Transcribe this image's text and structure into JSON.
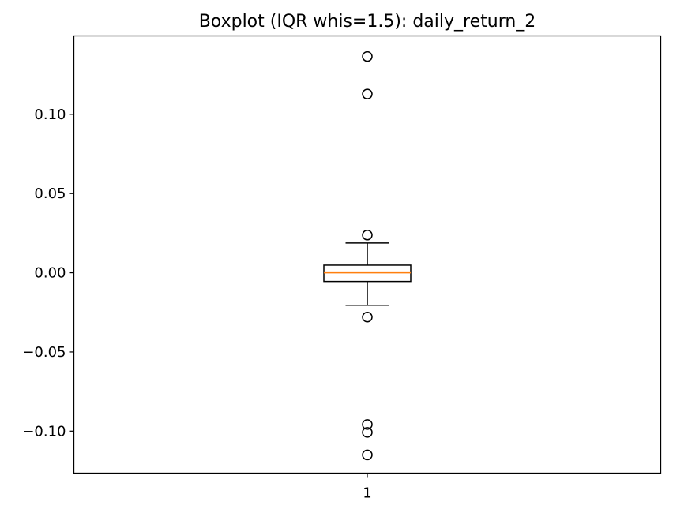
{
  "chart_data": {
    "type": "boxplot",
    "title": "Boxplot (IQR whis=1.5): daily_return_2",
    "xlabel": "",
    "ylabel": "",
    "categories": [
      "1"
    ],
    "ylim": [
      -0.1265,
      0.1495
    ],
    "yticks": [
      -0.1,
      -0.05,
      0.0,
      0.05,
      0.1
    ],
    "ytick_labels": [
      "−0.10",
      "−0.05",
      "0.00",
      "0.05",
      "0.10"
    ],
    "grid": false,
    "boxes": [
      {
        "category": "1",
        "q1": -0.0055,
        "median": 0.0,
        "q3": 0.0048,
        "whisker_low": -0.0205,
        "whisker_high": 0.0188,
        "outliers": [
          0.1365,
          0.1128,
          0.0238,
          -0.028,
          -0.0958,
          -0.1008,
          -0.115
        ]
      }
    ],
    "colors": {
      "box": "#000000",
      "median": "#ff7f0e",
      "outlier": "#000000"
    }
  }
}
